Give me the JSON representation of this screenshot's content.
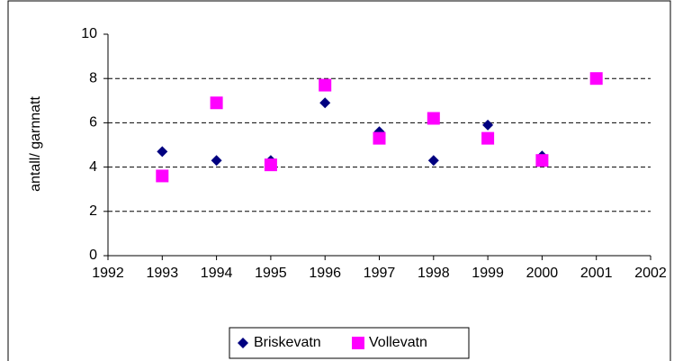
{
  "chart_data": {
    "type": "scatter",
    "y_label": "antall/ garnnatt",
    "xlim": [
      1992,
      2002
    ],
    "xticks": [
      1992,
      1993,
      1994,
      1995,
      1996,
      1997,
      1998,
      1999,
      2000,
      2001,
      2002
    ],
    "ylim": [
      0,
      10
    ],
    "yticks": [
      0,
      2,
      4,
      6,
      8,
      10
    ],
    "grid": true,
    "legend": "bottom",
    "series": [
      {
        "name": "Briskevatn",
        "color": "#000080",
        "marker": "diamond",
        "x": [
          1993,
          1994,
          1995,
          1996,
          1997,
          1998,
          1999,
          2000
        ],
        "values": [
          4.7,
          4.3,
          4.3,
          6.9,
          5.6,
          4.3,
          5.9,
          4.5
        ]
      },
      {
        "name": "Vollevatn",
        "color": "#ff00ff",
        "marker": "square",
        "x": [
          1993,
          1994,
          1995,
          1996,
          1997,
          1998,
          1999,
          2000,
          2001
        ],
        "values": [
          3.6,
          6.9,
          4.1,
          7.7,
          5.3,
          6.2,
          5.3,
          4.3,
          8.0
        ]
      }
    ]
  }
}
